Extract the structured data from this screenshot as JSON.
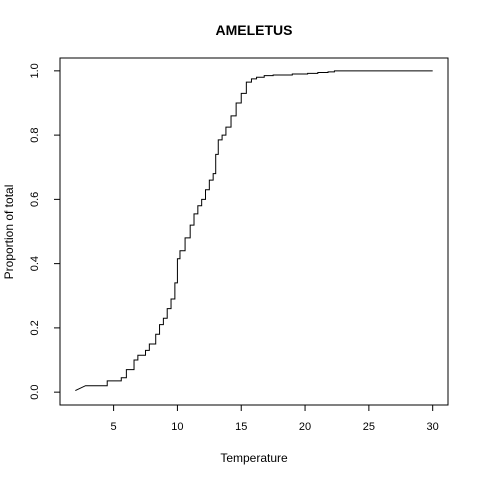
{
  "chart_data": {
    "type": "line",
    "step": true,
    "title": "AMELETUS",
    "xlabel": "Temperature",
    "ylabel": "Proportion of total",
    "xlim": [
      0.8,
      31.2
    ],
    "ylim": [
      -0.04,
      1.04
    ],
    "x_ticks": [
      5,
      10,
      15,
      20,
      25,
      30
    ],
    "y_ticks": [
      0.0,
      0.2,
      0.4,
      0.6,
      0.8,
      1.0
    ],
    "x_tick_labels": [
      "5",
      "10",
      "15",
      "20",
      "25",
      "30"
    ],
    "y_tick_labels": [
      "0.0",
      "0.2",
      "0.4",
      "0.6",
      "0.8",
      "1.0"
    ],
    "grid": false,
    "legend": "none",
    "line_color": "#000000",
    "series": [
      {
        "x": [
          2.0,
          2.8,
          4.5,
          5.6,
          6.0,
          6.6,
          6.9,
          7.5,
          7.8,
          8.3,
          8.6,
          8.9,
          9.2,
          9.5,
          9.8,
          10.0,
          10.2,
          10.6,
          11.0,
          11.3,
          11.6,
          11.9,
          12.2,
          12.5,
          12.8,
          13.0,
          13.2,
          13.5,
          13.8,
          14.2,
          14.6,
          15.0,
          15.4,
          15.8,
          16.2,
          16.8,
          17.5,
          19.0,
          20.2,
          21.0,
          21.8,
          22.3,
          25.0,
          30.0
        ],
        "y": [
          0.005,
          0.02,
          0.035,
          0.045,
          0.07,
          0.1,
          0.115,
          0.13,
          0.15,
          0.18,
          0.21,
          0.23,
          0.26,
          0.29,
          0.34,
          0.415,
          0.44,
          0.48,
          0.52,
          0.555,
          0.58,
          0.6,
          0.63,
          0.66,
          0.68,
          0.74,
          0.785,
          0.8,
          0.825,
          0.86,
          0.9,
          0.93,
          0.965,
          0.975,
          0.98,
          0.985,
          0.987,
          0.99,
          0.992,
          0.995,
          0.997,
          1.0,
          1.0,
          1.0
        ]
      }
    ]
  }
}
